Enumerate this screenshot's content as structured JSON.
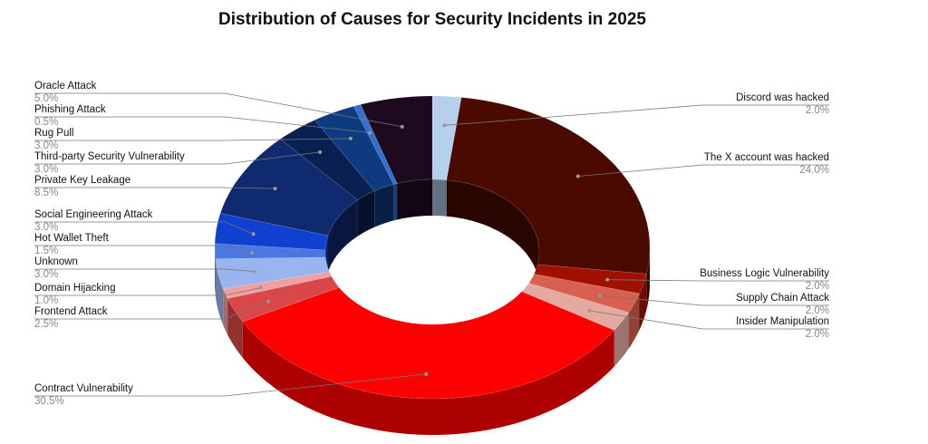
{
  "chart_data": {
    "type": "pie",
    "title": "Distribution of Causes for Security Incidents in 2025",
    "categories": [
      "Discord was hacked",
      "The X account was hacked",
      "Business Logic Vulnerability",
      "Supply Chain Attack",
      "Insider Manipulation",
      "Contract Vulnerability",
      "Frontend Attack",
      "Domain Hijacking",
      "Unknown",
      "Hot Wallet Theft",
      "Social Engineering Attack",
      "Private Key Leakage",
      "Third-party Security Vulnerability",
      "Rug Pull",
      "Phishing Attack",
      "Oracle Attack"
    ],
    "values": [
      2.0,
      24.0,
      2.0,
      2.0,
      2.0,
      30.5,
      2.5,
      1.0,
      3.0,
      1.5,
      3.0,
      8.5,
      3.0,
      3.0,
      0.5,
      5.0
    ],
    "value_labels": [
      "2.0%",
      "24.0%",
      "2.0%",
      "2.0%",
      "2.0%",
      "30.5%",
      "2.5%",
      "1.0%",
      "3.0%",
      "1.5%",
      "3.0%",
      "8.5%",
      "3.0%",
      "3.0%",
      "0.5%",
      "5.0%"
    ],
    "colors": [
      "#b4d0ec",
      "#4a0a00",
      "#a01000",
      "#d96050",
      "#e4aaa2",
      "#ff0000",
      "#d84848",
      "#f0a0a0",
      "#9ab4f0",
      "#4a78e0",
      "#1040d0",
      "#102a70",
      "#0a2050",
      "#0e3a80",
      "#3070d0",
      "#1e0a1e"
    ]
  }
}
